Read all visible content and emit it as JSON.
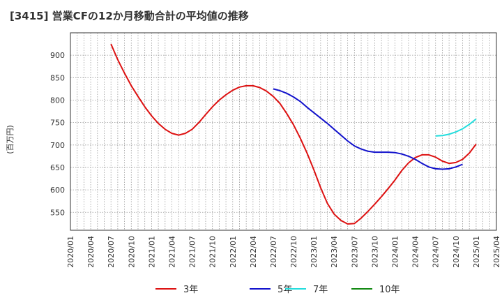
{
  "chart_data": {
    "type": "line",
    "title": "[3415]  営業CFの12か月移動合計の平均値の推移",
    "ylabel": "(百万円)",
    "xlabel": "",
    "ylim": [
      510,
      950
    ],
    "xlim": [
      "2020-01",
      "2025-04"
    ],
    "yticks": [
      550,
      600,
      650,
      700,
      750,
      800,
      850,
      900
    ],
    "xticks": [
      "2020/01",
      "2020/04",
      "2020/07",
      "2020/10",
      "2021/01",
      "2021/04",
      "2021/07",
      "2021/10",
      "2022/01",
      "2022/04",
      "2022/07",
      "2022/10",
      "2023/01",
      "2023/04",
      "2023/07",
      "2023/10",
      "2024/01",
      "2024/04",
      "2024/07",
      "2024/10",
      "2025/01",
      "2025/04"
    ],
    "grid": true,
    "legend_position": "bottom",
    "series": [
      {
        "name": "3年",
        "color": "#dd1111",
        "points": [
          [
            "2020-07",
            925
          ],
          [
            "2020-08",
            890
          ],
          [
            "2020-09",
            860
          ],
          [
            "2020-10",
            832
          ],
          [
            "2020-11",
            808
          ],
          [
            "2020-12",
            785
          ],
          [
            "2021-01",
            765
          ],
          [
            "2021-02",
            748
          ],
          [
            "2021-03",
            735
          ],
          [
            "2021-04",
            726
          ],
          [
            "2021-05",
            722
          ],
          [
            "2021-06",
            726
          ],
          [
            "2021-07",
            735
          ],
          [
            "2021-08",
            750
          ],
          [
            "2021-09",
            768
          ],
          [
            "2021-10",
            785
          ],
          [
            "2021-11",
            800
          ],
          [
            "2021-12",
            812
          ],
          [
            "2022-01",
            822
          ],
          [
            "2022-02",
            829
          ],
          [
            "2022-03",
            832
          ],
          [
            "2022-04",
            832
          ],
          [
            "2022-05",
            828
          ],
          [
            "2022-06",
            820
          ],
          [
            "2022-07",
            808
          ],
          [
            "2022-08",
            792
          ],
          [
            "2022-09",
            770
          ],
          [
            "2022-10",
            745
          ],
          [
            "2022-11",
            715
          ],
          [
            "2022-12",
            682
          ],
          [
            "2023-01",
            645
          ],
          [
            "2023-02",
            605
          ],
          [
            "2023-03",
            570
          ],
          [
            "2023-04",
            546
          ],
          [
            "2023-05",
            532
          ],
          [
            "2023-06",
            524
          ],
          [
            "2023-07",
            525
          ],
          [
            "2023-08",
            537
          ],
          [
            "2023-09",
            552
          ],
          [
            "2023-10",
            568
          ],
          [
            "2023-11",
            585
          ],
          [
            "2023-12",
            603
          ],
          [
            "2024-01",
            622
          ],
          [
            "2024-02",
            643
          ],
          [
            "2024-03",
            660
          ],
          [
            "2024-04",
            672
          ],
          [
            "2024-05",
            678
          ],
          [
            "2024-06",
            678
          ],
          [
            "2024-07",
            673
          ],
          [
            "2024-08",
            664
          ],
          [
            "2024-09",
            659
          ],
          [
            "2024-10",
            661
          ],
          [
            "2024-11",
            668
          ],
          [
            "2024-12",
            682
          ],
          [
            "2025-01",
            702
          ]
        ]
      },
      {
        "name": "5年",
        "color": "#1111cc",
        "points": [
          [
            "2022-07",
            825
          ],
          [
            "2022-08",
            821
          ],
          [
            "2022-09",
            815
          ],
          [
            "2022-10",
            807
          ],
          [
            "2022-11",
            797
          ],
          [
            "2022-12",
            784
          ],
          [
            "2023-01",
            772
          ],
          [
            "2023-02",
            760
          ],
          [
            "2023-03",
            748
          ],
          [
            "2023-04",
            735
          ],
          [
            "2023-05",
            722
          ],
          [
            "2023-06",
            709
          ],
          [
            "2023-07",
            698
          ],
          [
            "2023-08",
            691
          ],
          [
            "2023-09",
            686
          ],
          [
            "2023-10",
            684
          ],
          [
            "2023-11",
            684
          ],
          [
            "2023-12",
            684
          ],
          [
            "2024-01",
            683
          ],
          [
            "2024-02",
            680
          ],
          [
            "2024-03",
            675
          ],
          [
            "2024-04",
            668
          ],
          [
            "2024-05",
            659
          ],
          [
            "2024-06",
            651
          ],
          [
            "2024-07",
            647
          ],
          [
            "2024-08",
            646
          ],
          [
            "2024-09",
            647
          ],
          [
            "2024-10",
            651
          ],
          [
            "2024-11",
            657
          ]
        ]
      },
      {
        "name": "7年",
        "color": "#22dddd",
        "points": [
          [
            "2024-07",
            720
          ],
          [
            "2024-08",
            721
          ],
          [
            "2024-09",
            724
          ],
          [
            "2024-10",
            729
          ],
          [
            "2024-11",
            736
          ],
          [
            "2024-12",
            746
          ],
          [
            "2025-01",
            758
          ]
        ]
      },
      {
        "name": "10年",
        "color": "#118811",
        "points": []
      }
    ]
  }
}
